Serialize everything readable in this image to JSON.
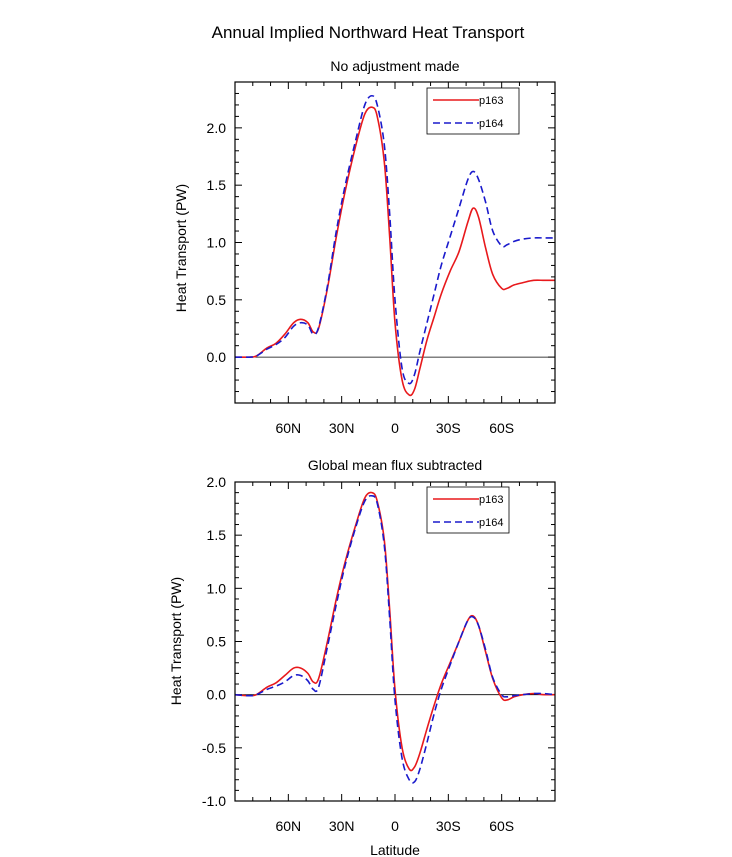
{
  "figure_title": "Annual Implied Northward Heat Transport",
  "colors": {
    "p163": "#e8191c",
    "p164": "#1a1acc",
    "zero_line": "#000000"
  },
  "chart_data": [
    {
      "type": "line",
      "title": "No adjustment made",
      "xlabel": "",
      "ylabel": "Heat Transport (PW)",
      "xlim": [
        90,
        -90
      ],
      "ylim": [
        -0.4,
        2.4
      ],
      "x_ticks": [
        60,
        30,
        0,
        -30,
        -60
      ],
      "x_tick_labels": [
        "60N",
        "30N",
        "0",
        "30S",
        "60S"
      ],
      "y_ticks": [
        0.0,
        0.5,
        1.0,
        1.5,
        2.0
      ],
      "y_tick_labels": [
        "0.0",
        "0.5",
        "1.0",
        "1.5",
        "2.0"
      ],
      "legend": [
        "p163",
        "p164"
      ],
      "legend_position": "top-right",
      "series": [
        {
          "name": "p163",
          "color": "#e8191c",
          "dash": "solid",
          "x": [
            90,
            82,
            78,
            72,
            67,
            62,
            57,
            53,
            49,
            46,
            43,
            38,
            33,
            28,
            22,
            17,
            13,
            10,
            6,
            3,
            0,
            -4,
            -8,
            -11,
            -14,
            -18,
            -22,
            -26,
            -31,
            -36,
            -41,
            -44,
            -47,
            -51,
            -55,
            -60,
            -63,
            -67,
            -72,
            -78,
            -84,
            -90
          ],
          "y": [
            0.0,
            0.0,
            0.01,
            0.08,
            0.12,
            0.2,
            0.3,
            0.33,
            0.3,
            0.22,
            0.25,
            0.6,
            1.05,
            1.45,
            1.85,
            2.12,
            2.18,
            2.1,
            1.7,
            1.05,
            0.3,
            -0.2,
            -0.33,
            -0.28,
            -0.1,
            0.15,
            0.35,
            0.55,
            0.75,
            0.92,
            1.18,
            1.3,
            1.22,
            0.95,
            0.72,
            0.6,
            0.6,
            0.63,
            0.65,
            0.67,
            0.67,
            0.67
          ]
        },
        {
          "name": "p164",
          "color": "#1a1acc",
          "dash": "dashed",
          "x": [
            90,
            82,
            78,
            72,
            67,
            62,
            57,
            53,
            49,
            46,
            43,
            38,
            33,
            28,
            22,
            17,
            13,
            10,
            6,
            3,
            0,
            -4,
            -8,
            -11,
            -14,
            -18,
            -22,
            -26,
            -31,
            -36,
            -41,
            -44,
            -47,
            -51,
            -55,
            -60,
            -63,
            -67,
            -72,
            -78,
            -84,
            -90
          ],
          "y": [
            0.0,
            0.0,
            0.01,
            0.07,
            0.11,
            0.17,
            0.27,
            0.3,
            0.28,
            0.2,
            0.26,
            0.62,
            1.1,
            1.5,
            1.9,
            2.2,
            2.28,
            2.2,
            1.85,
            1.25,
            0.5,
            -0.1,
            -0.23,
            -0.15,
            0.05,
            0.3,
            0.55,
            0.8,
            1.05,
            1.3,
            1.55,
            1.62,
            1.55,
            1.35,
            1.1,
            0.97,
            0.98,
            1.01,
            1.03,
            1.04,
            1.04,
            1.04
          ]
        }
      ]
    },
    {
      "type": "line",
      "title": "Global mean flux subtracted",
      "xlabel": "Latitude",
      "ylabel": "Heat Transport (PW)",
      "xlim": [
        90,
        -90
      ],
      "ylim": [
        -1.0,
        2.0
      ],
      "x_ticks": [
        60,
        30,
        0,
        -30,
        -60
      ],
      "x_tick_labels": [
        "60N",
        "30N",
        "0",
        "30S",
        "60S"
      ],
      "y_ticks": [
        -1.0,
        -0.5,
        0.0,
        0.5,
        1.0,
        1.5,
        2.0
      ],
      "y_tick_labels": [
        "-1.0",
        "-0.5",
        "0.0",
        "0.5",
        "1.0",
        "1.5",
        "2.0"
      ],
      "legend": [
        "p163",
        "p164"
      ],
      "legend_position": "top-right",
      "series": [
        {
          "name": "p163",
          "color": "#e8191c",
          "dash": "solid",
          "x": [
            90,
            82,
            78,
            72,
            67,
            62,
            57,
            53,
            49,
            46,
            43,
            38,
            33,
            28,
            22,
            17,
            13,
            10,
            6,
            3,
            0,
            -4,
            -8,
            -11,
            -14,
            -18,
            -22,
            -26,
            -31,
            -36,
            -41,
            -44,
            -47,
            -51,
            -55,
            -60,
            -63,
            -67,
            -72,
            -78,
            -84,
            -90
          ],
          "y": [
            0.0,
            -0.01,
            0.0,
            0.07,
            0.11,
            0.18,
            0.25,
            0.25,
            0.2,
            0.12,
            0.15,
            0.5,
            0.9,
            1.25,
            1.6,
            1.85,
            1.9,
            1.82,
            1.45,
            0.8,
            0.05,
            -0.5,
            -0.7,
            -0.68,
            -0.55,
            -0.32,
            -0.1,
            0.1,
            0.3,
            0.5,
            0.7,
            0.74,
            0.65,
            0.4,
            0.15,
            -0.03,
            -0.05,
            -0.02,
            0.0,
            0.01,
            0.0,
            0.0
          ]
        },
        {
          "name": "p164",
          "color": "#1a1acc",
          "dash": "dashed",
          "x": [
            90,
            82,
            78,
            72,
            67,
            62,
            57,
            53,
            49,
            46,
            43,
            38,
            33,
            28,
            22,
            17,
            13,
            10,
            6,
            3,
            0,
            -4,
            -8,
            -11,
            -14,
            -18,
            -22,
            -26,
            -31,
            -36,
            -41,
            -44,
            -47,
            -51,
            -55,
            -60,
            -63,
            -67,
            -72,
            -78,
            -84,
            -90
          ],
          "y": [
            0.0,
            -0.01,
            0.0,
            0.05,
            0.08,
            0.12,
            0.18,
            0.18,
            0.13,
            0.05,
            0.07,
            0.45,
            0.85,
            1.22,
            1.58,
            1.82,
            1.87,
            1.8,
            1.4,
            0.72,
            -0.05,
            -0.6,
            -0.8,
            -0.82,
            -0.7,
            -0.45,
            -0.18,
            0.05,
            0.28,
            0.5,
            0.7,
            0.73,
            0.65,
            0.42,
            0.16,
            0.0,
            -0.02,
            -0.01,
            0.0,
            0.01,
            0.01,
            0.0
          ]
        }
      ]
    }
  ]
}
